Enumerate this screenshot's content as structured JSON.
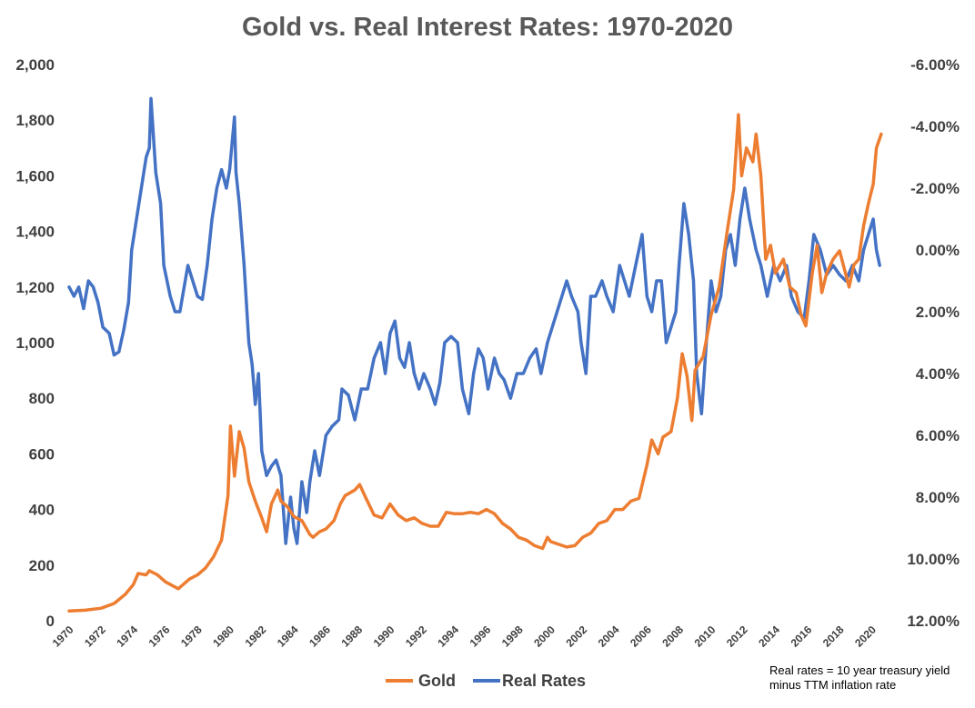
{
  "chart_data": {
    "type": "line",
    "title": "Gold vs. Real Interest Rates: 1970-2020",
    "left_axis": {
      "ylim": [
        0,
        2000
      ],
      "ticks": [
        "0",
        "200",
        "400",
        "600",
        "800",
        "1,000",
        "1,200",
        "1,400",
        "1,600",
        "1,800",
        "2,000"
      ]
    },
    "right_axis": {
      "inverted": true,
      "ylim": [
        12.0,
        -6.0
      ],
      "ticks": [
        "12.00%",
        "10.00%",
        "8.00%",
        "6.00%",
        "4.00%",
        "2.00%",
        "0.00%",
        "-2.00%",
        "-4.00%",
        "-6.00%"
      ]
    },
    "x_axis": {
      "xlim": [
        1970,
        2021
      ],
      "ticks": [
        "1970",
        "1972",
        "1974",
        "1976",
        "1978",
        "1980",
        "1982",
        "1984",
        "1986",
        "1988",
        "1990",
        "1992",
        "1994",
        "1996",
        "1998",
        "2000",
        "2002",
        "2004",
        "2006",
        "2008",
        "2010",
        "2012",
        "2014",
        "2016",
        "2018",
        "2020"
      ]
    },
    "legend": {
      "position": "bottom"
    },
    "grid": false,
    "series": [
      {
        "name": "Gold",
        "axis": "left",
        "color": "#ED7D31",
        "points": [
          [
            1970,
            35
          ],
          [
            1971,
            38
          ],
          [
            1972,
            45
          ],
          [
            1972.8,
            62
          ],
          [
            1973.5,
            95
          ],
          [
            1974,
            130
          ],
          [
            1974.3,
            170
          ],
          [
            1974.8,
            165
          ],
          [
            1975,
            180
          ],
          [
            1975.5,
            165
          ],
          [
            1976,
            140
          ],
          [
            1976.8,
            115
          ],
          [
            1977.5,
            150
          ],
          [
            1978,
            165
          ],
          [
            1978.5,
            190
          ],
          [
            1979,
            230
          ],
          [
            1979.5,
            290
          ],
          [
            1979.9,
            450
          ],
          [
            1980.05,
            700
          ],
          [
            1980.3,
            520
          ],
          [
            1980.6,
            680
          ],
          [
            1980.9,
            620
          ],
          [
            1981.2,
            500
          ],
          [
            1981.6,
            430
          ],
          [
            1982,
            370
          ],
          [
            1982.3,
            320
          ],
          [
            1982.6,
            420
          ],
          [
            1983,
            470
          ],
          [
            1983.2,
            430
          ],
          [
            1983.6,
            410
          ],
          [
            1984,
            375
          ],
          [
            1984.5,
            360
          ],
          [
            1985,
            310
          ],
          [
            1985.2,
            300
          ],
          [
            1985.6,
            320
          ],
          [
            1986,
            330
          ],
          [
            1986.5,
            360
          ],
          [
            1986.9,
            420
          ],
          [
            1987.2,
            450
          ],
          [
            1987.8,
            470
          ],
          [
            1988.1,
            490
          ],
          [
            1988.5,
            440
          ],
          [
            1989,
            380
          ],
          [
            1989.5,
            370
          ],
          [
            1990,
            420
          ],
          [
            1990.5,
            380
          ],
          [
            1991,
            360
          ],
          [
            1991.5,
            370
          ],
          [
            1992,
            350
          ],
          [
            1992.5,
            340
          ],
          [
            1993,
            340
          ],
          [
            1993.5,
            390
          ],
          [
            1994,
            385
          ],
          [
            1994.5,
            385
          ],
          [
            1995,
            390
          ],
          [
            1995.5,
            385
          ],
          [
            1996,
            400
          ],
          [
            1996.5,
            385
          ],
          [
            1997,
            350
          ],
          [
            1997.5,
            330
          ],
          [
            1998,
            300
          ],
          [
            1998.5,
            290
          ],
          [
            1999,
            270
          ],
          [
            1999.5,
            260
          ],
          [
            1999.8,
            300
          ],
          [
            2000,
            285
          ],
          [
            2000.5,
            275
          ],
          [
            2001,
            265
          ],
          [
            2001.5,
            270
          ],
          [
            2002,
            300
          ],
          [
            2002.5,
            315
          ],
          [
            2003,
            350
          ],
          [
            2003.5,
            360
          ],
          [
            2004,
            400
          ],
          [
            2004.5,
            400
          ],
          [
            2005,
            430
          ],
          [
            2005.5,
            440
          ],
          [
            2006,
            560
          ],
          [
            2006.3,
            650
          ],
          [
            2006.7,
            600
          ],
          [
            2007,
            660
          ],
          [
            2007.5,
            680
          ],
          [
            2007.9,
            800
          ],
          [
            2008.2,
            960
          ],
          [
            2008.5,
            880
          ],
          [
            2008.8,
            720
          ],
          [
            2009,
            900
          ],
          [
            2009.5,
            950
          ],
          [
            2010,
            1100
          ],
          [
            2010.5,
            1200
          ],
          [
            2011,
            1400
          ],
          [
            2011.4,
            1550
          ],
          [
            2011.7,
            1820
          ],
          [
            2011.9,
            1600
          ],
          [
            2012.2,
            1700
          ],
          [
            2012.6,
            1650
          ],
          [
            2012.8,
            1750
          ],
          [
            2013.1,
            1600
          ],
          [
            2013.4,
            1300
          ],
          [
            2013.7,
            1350
          ],
          [
            2014,
            1250
          ],
          [
            2014.5,
            1300
          ],
          [
            2014.9,
            1200
          ],
          [
            2015.3,
            1180
          ],
          [
            2015.6,
            1100
          ],
          [
            2015.9,
            1060
          ],
          [
            2016.3,
            1250
          ],
          [
            2016.6,
            1350
          ],
          [
            2016.9,
            1180
          ],
          [
            2017.2,
            1250
          ],
          [
            2017.6,
            1300
          ],
          [
            2018,
            1330
          ],
          [
            2018.6,
            1200
          ],
          [
            2018.9,
            1280
          ],
          [
            2019.2,
            1300
          ],
          [
            2019.5,
            1420
          ],
          [
            2019.8,
            1500
          ],
          [
            2020.1,
            1570
          ],
          [
            2020.3,
            1700
          ],
          [
            2020.6,
            1750
          ]
        ]
      },
      {
        "name": "Real Rates",
        "axis": "right",
        "color": "#4472C4",
        "points": [
          [
            1970,
            1.2
          ],
          [
            1970.3,
            1.5
          ],
          [
            1970.6,
            1.2
          ],
          [
            1970.9,
            1.9
          ],
          [
            1971.2,
            1.0
          ],
          [
            1971.5,
            1.2
          ],
          [
            1971.8,
            1.7
          ],
          [
            1972.1,
            2.5
          ],
          [
            1972.5,
            2.7
          ],
          [
            1972.8,
            3.4
          ],
          [
            1973.1,
            3.3
          ],
          [
            1973.4,
            2.6
          ],
          [
            1973.7,
            1.7
          ],
          [
            1973.9,
            0.0
          ],
          [
            1974.2,
            -1.0
          ],
          [
            1974.5,
            -2.0
          ],
          [
            1974.8,
            -3.0
          ],
          [
            1975,
            -3.3
          ],
          [
            1975.1,
            -4.9
          ],
          [
            1975.4,
            -2.5
          ],
          [
            1975.7,
            -1.5
          ],
          [
            1975.9,
            0.5
          ],
          [
            1976.3,
            1.5
          ],
          [
            1976.6,
            2.0
          ],
          [
            1976.9,
            2.0
          ],
          [
            1977.1,
            1.4
          ],
          [
            1977.4,
            0.5
          ],
          [
            1977.7,
            1.0
          ],
          [
            1978,
            1.5
          ],
          [
            1978.3,
            1.6
          ],
          [
            1978.6,
            0.5
          ],
          [
            1978.9,
            -1.0
          ],
          [
            1979.2,
            -2.0
          ],
          [
            1979.5,
            -2.6
          ],
          [
            1979.8,
            -2.0
          ],
          [
            1980,
            -2.6
          ],
          [
            1980.3,
            -4.3
          ],
          [
            1980.4,
            -2.5
          ],
          [
            1980.6,
            -1.5
          ],
          [
            1980.9,
            0.5
          ],
          [
            1981.2,
            3.0
          ],
          [
            1981.4,
            3.7
          ],
          [
            1981.6,
            5.0
          ],
          [
            1981.8,
            4.0
          ],
          [
            1982,
            6.5
          ],
          [
            1982.3,
            7.3
          ],
          [
            1982.6,
            7.0
          ],
          [
            1982.9,
            6.8
          ],
          [
            1983.2,
            7.3
          ],
          [
            1983.5,
            9.5
          ],
          [
            1983.8,
            8.0
          ],
          [
            1984,
            9.0
          ],
          [
            1984.2,
            9.5
          ],
          [
            1984.5,
            7.5
          ],
          [
            1984.8,
            8.5
          ],
          [
            1985,
            7.5
          ],
          [
            1985.3,
            6.5
          ],
          [
            1985.6,
            7.3
          ],
          [
            1986,
            6.0
          ],
          [
            1986.4,
            5.7
          ],
          [
            1986.8,
            5.5
          ],
          [
            1987,
            4.5
          ],
          [
            1987.4,
            4.7
          ],
          [
            1987.8,
            5.5
          ],
          [
            1988.2,
            4.5
          ],
          [
            1988.6,
            4.5
          ],
          [
            1989,
            3.5
          ],
          [
            1989.4,
            3.0
          ],
          [
            1989.7,
            4.0
          ],
          [
            1990,
            2.7
          ],
          [
            1990.3,
            2.3
          ],
          [
            1990.6,
            3.5
          ],
          [
            1990.9,
            3.8
          ],
          [
            1991.2,
            3.0
          ],
          [
            1991.5,
            4.0
          ],
          [
            1991.8,
            4.5
          ],
          [
            1992.1,
            4.0
          ],
          [
            1992.5,
            4.5
          ],
          [
            1992.8,
            5.0
          ],
          [
            1993.1,
            4.3
          ],
          [
            1993.4,
            3.0
          ],
          [
            1993.8,
            2.8
          ],
          [
            1994.2,
            3.0
          ],
          [
            1994.5,
            4.5
          ],
          [
            1994.9,
            5.3
          ],
          [
            1995.2,
            4.0
          ],
          [
            1995.5,
            3.2
          ],
          [
            1995.8,
            3.5
          ],
          [
            1996.1,
            4.5
          ],
          [
            1996.5,
            3.5
          ],
          [
            1996.8,
            4.0
          ],
          [
            1997.1,
            4.2
          ],
          [
            1997.5,
            4.8
          ],
          [
            1997.9,
            4.0
          ],
          [
            1998.3,
            4.0
          ],
          [
            1998.7,
            3.5
          ],
          [
            1999.1,
            3.2
          ],
          [
            1999.4,
            4.0
          ],
          [
            1999.8,
            3.0
          ],
          [
            2000.1,
            2.5
          ],
          [
            2000.4,
            2.0
          ],
          [
            2000.7,
            1.5
          ],
          [
            2001,
            1.0
          ],
          [
            2001.3,
            1.5
          ],
          [
            2001.7,
            2.0
          ],
          [
            2001.9,
            3.0
          ],
          [
            2002.2,
            4.0
          ],
          [
            2002.5,
            1.5
          ],
          [
            2002.8,
            1.5
          ],
          [
            2003.2,
            1.0
          ],
          [
            2003.5,
            1.5
          ],
          [
            2003.9,
            2.0
          ],
          [
            2004.3,
            0.5
          ],
          [
            2004.6,
            1.0
          ],
          [
            2004.9,
            1.5
          ],
          [
            2005.3,
            0.5
          ],
          [
            2005.7,
            -0.5
          ],
          [
            2006,
            1.5
          ],
          [
            2006.3,
            2.0
          ],
          [
            2006.6,
            1.0
          ],
          [
            2006.9,
            1.0
          ],
          [
            2007.2,
            3.0
          ],
          [
            2007.5,
            2.5
          ],
          [
            2007.8,
            2.0
          ],
          [
            2008,
            0.5
          ],
          [
            2008.3,
            -1.5
          ],
          [
            2008.6,
            -0.5
          ],
          [
            2008.9,
            1.0
          ],
          [
            2009.1,
            4.0
          ],
          [
            2009.4,
            5.3
          ],
          [
            2009.7,
            3.0
          ],
          [
            2010,
            1.0
          ],
          [
            2010.3,
            2.0
          ],
          [
            2010.6,
            1.5
          ],
          [
            2010.9,
            0.0
          ],
          [
            2011.2,
            -0.5
          ],
          [
            2011.5,
            0.5
          ],
          [
            2011.8,
            -1.0
          ],
          [
            2012.1,
            -2.0
          ],
          [
            2012.4,
            -1.0
          ],
          [
            2012.8,
            0.0
          ],
          [
            2013.1,
            0.5
          ],
          [
            2013.5,
            1.5
          ],
          [
            2013.9,
            0.5
          ],
          [
            2014.3,
            1.0
          ],
          [
            2014.7,
            0.5
          ],
          [
            2015,
            1.5
          ],
          [
            2015.4,
            2.0
          ],
          [
            2015.8,
            2.2
          ],
          [
            2016.1,
            1.0
          ],
          [
            2016.4,
            -0.5
          ],
          [
            2016.8,
            0.0
          ],
          [
            2017.2,
            0.8
          ],
          [
            2017.6,
            0.5
          ],
          [
            2018,
            0.8
          ],
          [
            2018.4,
            1.0
          ],
          [
            2018.8,
            0.5
          ],
          [
            2019.2,
            1.0
          ],
          [
            2019.5,
            0.0
          ],
          [
            2019.8,
            -0.5
          ],
          [
            2020.1,
            -1.0
          ],
          [
            2020.3,
            0.0
          ],
          [
            2020.5,
            0.5
          ]
        ]
      }
    ]
  },
  "note": {
    "line1": "Real rates = 10 year treasury yield",
    "line2": "minus TTM inflation rate"
  }
}
